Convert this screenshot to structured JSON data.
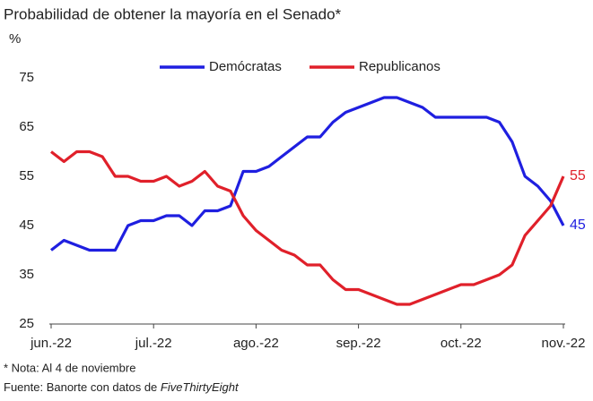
{
  "chart_data": {
    "type": "line",
    "title": "Probabilidad de obtener la mayoría en el Senado*",
    "y_label": "%",
    "categories": [
      "jun.-22",
      null,
      null,
      null,
      null,
      null,
      null,
      null,
      "jul.-22",
      null,
      null,
      null,
      null,
      null,
      null,
      null,
      "ago.-22",
      null,
      null,
      null,
      null,
      null,
      null,
      null,
      "sep.-22",
      null,
      null,
      null,
      null,
      null,
      null,
      null,
      "oct.-22",
      null,
      null,
      null,
      null,
      null,
      null,
      null,
      "nov.-22"
    ],
    "series": [
      {
        "name": "Demócratas",
        "color": "#1f1fe0",
        "values": [
          40,
          42,
          41,
          40,
          40,
          40,
          45,
          46,
          46,
          47,
          47,
          45,
          48,
          48,
          49,
          56,
          56,
          57,
          59,
          61,
          63,
          63,
          66,
          68,
          69,
          70,
          71,
          71,
          70,
          69,
          67,
          67,
          67,
          67,
          67,
          66,
          62,
          55,
          53,
          50,
          45
        ]
      },
      {
        "name": "Republicanos",
        "color": "#e0202a",
        "values": [
          60,
          58,
          60,
          60,
          59,
          55,
          55,
          54,
          54,
          55,
          53,
          54,
          56,
          53,
          52,
          47,
          44,
          42,
          40,
          39,
          37,
          37,
          34,
          32,
          32,
          31,
          30,
          29,
          29,
          30,
          31,
          32,
          33,
          33,
          34,
          35,
          37,
          43,
          46,
          49,
          55
        ]
      }
    ],
    "ylim": [
      25,
      75
    ],
    "yticks": [
      25,
      35,
      45,
      55,
      65,
      75
    ],
    "grid": false,
    "legend": "top",
    "notes": [
      "* Nota: Al 4 de noviembre"
    ],
    "source": {
      "text": "Fuente: Banorte con datos de ",
      "italic": "FiveThirtyEight"
    }
  }
}
